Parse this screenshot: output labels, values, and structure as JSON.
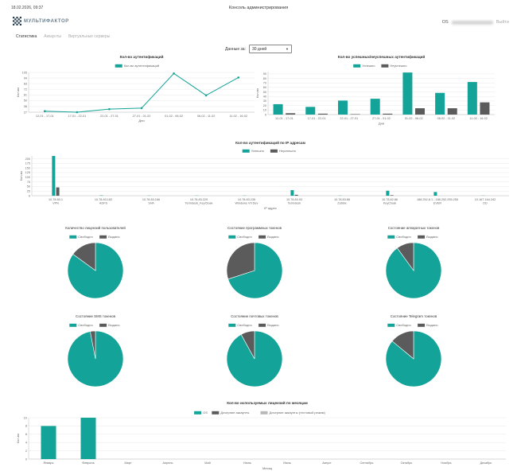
{
  "header": {
    "datetime": "18.02.2026, 09:37",
    "title": "Консоль администрирования",
    "logo_text": "МУЛЬТИФАКТОР",
    "user_prefix": "OS",
    "logout": "Выйти"
  },
  "tabs": [
    {
      "label": "Статистика",
      "active": true
    },
    {
      "label": "Аккаунты",
      "active": false
    },
    {
      "label": "Виртуальные серверы",
      "active": false
    }
  ],
  "filter": {
    "label": "Данные за:",
    "value": "30 дней"
  },
  "colors": {
    "teal": "#13a398",
    "dark": "#5b5b5b",
    "gray": "#b8b8b8"
  },
  "chart_data": [
    {
      "id": "c1",
      "type": "line",
      "title": "Кол-во аутентификаций",
      "legend": [
        "Кол-во аутентификаций"
      ],
      "categories": [
        "12-01 - 17-01",
        "17-01 - 22-01",
        "22-01 - 27-01",
        "27-01 - 01-02",
        "01-02 - 06-02",
        "06-02 - 11-02",
        "11-02 - 16-02"
      ],
      "values": [
        29,
        27,
        33,
        35,
        103,
        60,
        95
      ],
      "yticks": [
        27,
        38,
        50,
        61,
        72,
        83,
        94,
        105
      ],
      "ylim": [
        27,
        105
      ],
      "xlabel": "Дни",
      "ylabel": "Кол-во"
    },
    {
      "id": "c2",
      "type": "bar",
      "title": "Кол-во успешных/неуспешных аутентификаций",
      "legend": [
        "Успешно",
        "Неуспешно"
      ],
      "categories": [
        "12-01 - 17-01",
        "17-01 - 22-01",
        "22-01 - 27-01",
        "27-01 - 01-02",
        "01-02 - 06-02",
        "06-02 - 11-02",
        "11-02 - 16-02"
      ],
      "series": [
        {
          "name": "Успешно",
          "values": [
            23,
            17,
            31,
            35,
            93,
            48,
            72
          ]
        },
        {
          "name": "Неуспешно",
          "values": [
            3,
            2,
            1,
            2,
            14,
            14,
            27
          ]
        }
      ],
      "yticks": [
        0,
        10,
        20,
        30,
        40,
        50,
        60,
        70,
        80,
        90
      ],
      "ylim": [
        0,
        95
      ],
      "xlabel": "Дни",
      "ylabel": "Кол-во"
    },
    {
      "id": "c3",
      "type": "bar",
      "title": "Кол-во аутентификаций по IP адресам",
      "legend": [
        "Успешно",
        "Неуспешно"
      ],
      "categories": [
        [
          "10.78.83.1",
          "VPN"
        ],
        [
          "10.78.83.182",
          "ADFS"
        ],
        [
          "10.78.83.166",
          "SVA"
        ],
        [
          "10.78.83.229",
          "Termdesk_KeyCloak"
        ],
        [
          "10.78.83.235",
          "Windows VII Dev"
        ],
        [
          "10.78.83.93",
          "Termdesk"
        ],
        [
          "10.78.83.88",
          "Zabbix"
        ],
        [
          "10.78.82.86",
          "KeyCloak"
        ],
        [
          "188.252.8.1 - 188.252.255.255",
          "EVER"
        ],
        [
          "10.167.164.242",
          "DD"
        ]
      ],
      "series": [
        {
          "name": "Успешно",
          "values": [
            215,
            2,
            1,
            1,
            1,
            30,
            1,
            27,
            20,
            1
          ]
        },
        {
          "name": "Неуспешно",
          "values": [
            45,
            0,
            0,
            0,
            0,
            5,
            0,
            3,
            0,
            0
          ]
        }
      ],
      "yticks": [
        0,
        25,
        50,
        75,
        100,
        125,
        150,
        175,
        200
      ],
      "ylim": [
        0,
        215
      ],
      "xlabel": "IP адрес",
      "ylabel": "Кол-во"
    },
    {
      "id": "p1",
      "type": "pie",
      "title": "Количество лицензий пользователей",
      "legend": [
        "Свободно",
        "Выдано"
      ],
      "values": [
        85,
        15
      ]
    },
    {
      "id": "p2",
      "type": "pie",
      "title": "Состояние программных токенов",
      "legend": [
        "Свободно",
        "Выдано"
      ],
      "values": [
        70,
        30
      ]
    },
    {
      "id": "p3",
      "type": "pie",
      "title": "Состояние аппаратных токенов",
      "legend": [
        "Свободно",
        "Выдано"
      ],
      "values": [
        90,
        10
      ]
    },
    {
      "id": "p4",
      "type": "pie",
      "title": "Состояние SMS токенов",
      "legend": [
        "Свободно",
        "Выдано"
      ],
      "values": [
        97,
        3
      ]
    },
    {
      "id": "p5",
      "type": "pie",
      "title": "Состояние почтовых токенов",
      "legend": [
        "Свободно",
        "Выдано"
      ],
      "values": [
        92,
        8
      ]
    },
    {
      "id": "p6",
      "type": "pie",
      "title": "Состояние Telegram токенов",
      "legend": [
        "Свободно",
        "Выдано"
      ],
      "values": [
        86,
        14
      ]
    },
    {
      "id": "c4",
      "type": "bar",
      "title": "Кол-во используемых лицензий по месяцам",
      "legend": [
        "OS",
        "Дочерние аккаунты",
        "Дочерние аккаунты (тестовый режим)"
      ],
      "categories": [
        "Январь",
        "Февраль",
        "Март",
        "Апрель",
        "Май",
        "Июнь",
        "Июль",
        "Август",
        "Сентябрь",
        "Октябрь",
        "Ноябрь",
        "Декабрь"
      ],
      "series": [
        {
          "name": "OS",
          "values": [
            8,
            10,
            0,
            0,
            0,
            0,
            0,
            0,
            0,
            0,
            0,
            0
          ]
        },
        {
          "name": "Дочерние аккаунты",
          "values": [
            0,
            0,
            0,
            0,
            0,
            0,
            0,
            0,
            0,
            0,
            0,
            0
          ]
        },
        {
          "name": "Дочерние аккаунты (тестовый режим)",
          "values": [
            0,
            0,
            0,
            0,
            0,
            0,
            0,
            0,
            0,
            0,
            0,
            0
          ]
        }
      ],
      "yticks": [
        0,
        2,
        4,
        6,
        8,
        10
      ],
      "ylim": [
        0,
        10
      ],
      "xlabel": "Месяц",
      "ylabel": "Кол-во"
    }
  ]
}
